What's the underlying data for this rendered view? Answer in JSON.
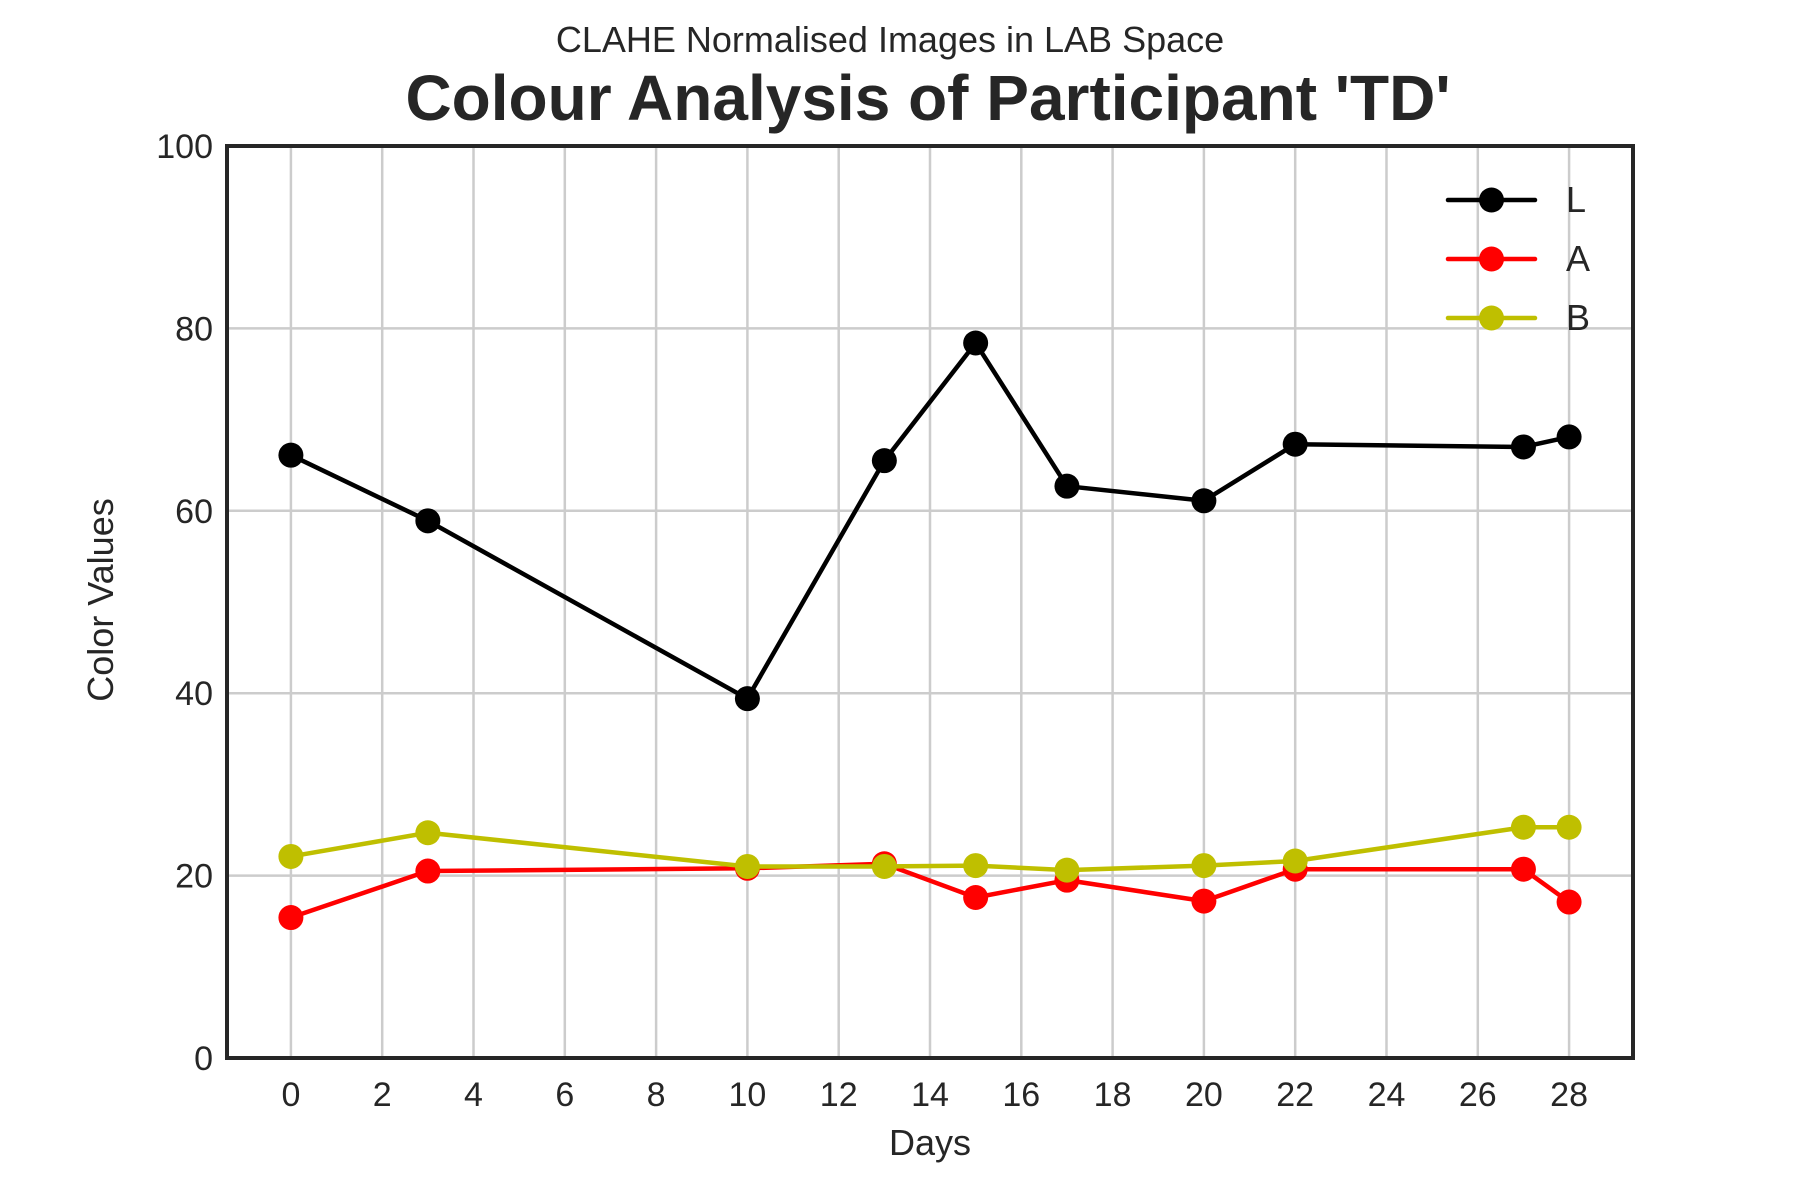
{
  "chart_data": {
    "type": "line",
    "subtitle": "CLAHE Normalised Images in LAB Space",
    "title": "Colour Analysis of Participant 'TD'",
    "xlabel": "Days",
    "ylabel": "Color Values",
    "xlim": [
      -1.4,
      29.4
    ],
    "ylim": [
      0,
      100
    ],
    "xticks": [
      0,
      2,
      4,
      6,
      8,
      10,
      12,
      14,
      16,
      18,
      20,
      22,
      24,
      26,
      28
    ],
    "yticks": [
      0,
      20,
      40,
      60,
      80,
      100
    ],
    "grid": true,
    "legend_position": "top-right",
    "x": [
      0,
      3,
      10,
      13,
      15,
      17,
      20,
      22,
      27,
      28
    ],
    "series": [
      {
        "name": "L",
        "color": "#000000",
        "values": [
          66.1,
          58.9,
          39.4,
          65.5,
          78.4,
          62.7,
          61.1,
          67.3,
          67.0,
          68.1
        ]
      },
      {
        "name": "A",
        "color": "#ff0000",
        "values": [
          15.4,
          20.5,
          20.8,
          21.3,
          17.6,
          19.5,
          17.2,
          20.7,
          20.7,
          17.1
        ]
      },
      {
        "name": "B",
        "color": "#bfbf00",
        "values": [
          22.1,
          24.7,
          21.0,
          21.0,
          21.1,
          20.6,
          21.1,
          21.6,
          25.3,
          25.3
        ]
      }
    ]
  }
}
